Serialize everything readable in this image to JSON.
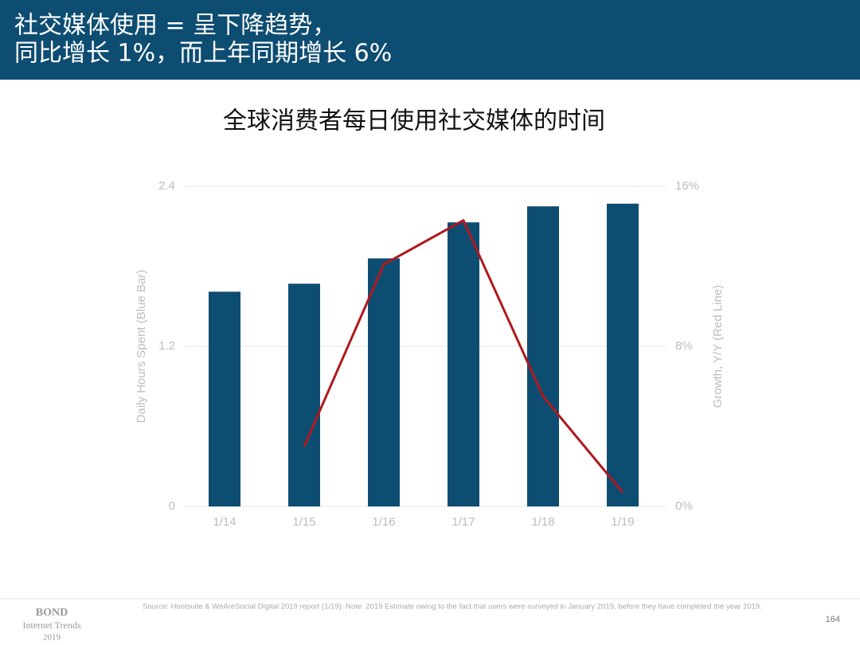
{
  "slide_title": [
    "社交媒体使用 = 呈下降趋势，",
    "同比增长 1%，而上年同期增长 6%"
  ],
  "chart_data": {
    "type": "bar-line",
    "title": "全球消费者每日使用社交媒体的时间",
    "categories": [
      "1/14",
      "1/15",
      "1/16",
      "1/17",
      "1/18",
      "1/19"
    ],
    "series": [
      {
        "type": "bar",
        "color": "#0e4d72",
        "values": [
          1.61,
          1.67,
          1.86,
          2.13,
          2.25,
          2.27
        ]
      },
      {
        "type": "line",
        "color": "#b0191e",
        "axis": "y2",
        "values": [
          null,
          3.0,
          12.1,
          14.3,
          5.5,
          0.7
        ]
      }
    ],
    "ylabel": "Daily Hours Spent (Blue Bar)",
    "y2label": "Growth, Y/Y (Red Line)",
    "ylim": [
      0,
      2.4
    ],
    "yticks": [
      0,
      1.2,
      2.4
    ],
    "y2lim": [
      0,
      16
    ],
    "y2ticks": [
      {
        "value": 0,
        "label": "0%"
      },
      {
        "value": 8,
        "label": "8%"
      },
      {
        "value": 16,
        "label": "16%"
      }
    ],
    "grid": true
  },
  "footer": {
    "brand": [
      "BOND",
      "Internet Trends",
      "2019"
    ],
    "source": "Source: Hootsuite & WeAreSocial Digital 2019 report (1/19).  Note: 2019 Estimate owing to the fact that users were surveyed in January 2019, before they have completed the year 2019.",
    "page": "164"
  }
}
